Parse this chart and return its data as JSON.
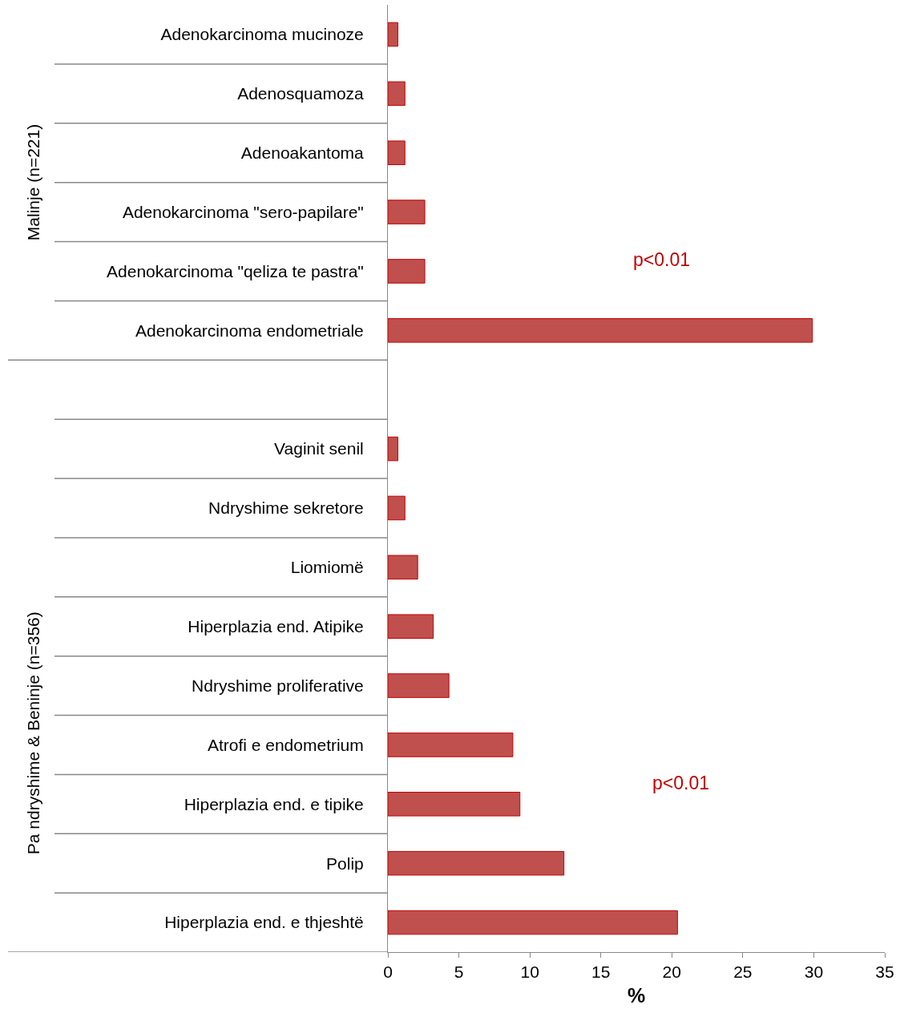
{
  "chart_data": {
    "type": "bar",
    "orientation": "horizontal",
    "xlabel": "%",
    "categories": [
      "Adenokarcinoma mucinoze",
      "Adenosquamoza",
      "Adenoakantoma",
      "Adenokarcinoma \"sero-papilare\"",
      "Adenokarcinoma \"qeliza te pastra\"",
      "Adenokarcinoma endometriale",
      null,
      "Vaginit senil",
      "Ndryshime sekretore",
      "Liomiomë",
      "Hiperplazia end. Atipike",
      "Ndryshime proliferative",
      "Atrofi e endometrium",
      "Hiperplazia end. e tipike",
      "Polip",
      "Hiperplazia end. e thjeshtë"
    ],
    "values": [
      0.7,
      1.2,
      1.2,
      2.6,
      2.6,
      29.9,
      null,
      0.7,
      1.2,
      2.1,
      3.2,
      4.3,
      8.8,
      9.3,
      12.4,
      20.4
    ],
    "color": "#c0504d",
    "xlim": [
      0,
      35
    ],
    "xticks": [
      0,
      5,
      10,
      15,
      20,
      25,
      30,
      35
    ],
    "legend": false,
    "annotations": [
      "p<0.01",
      "p<0.01",
      "Malinje (n=221)",
      "Pa ndryshime & Beninje (n=356)"
    ]
  }
}
